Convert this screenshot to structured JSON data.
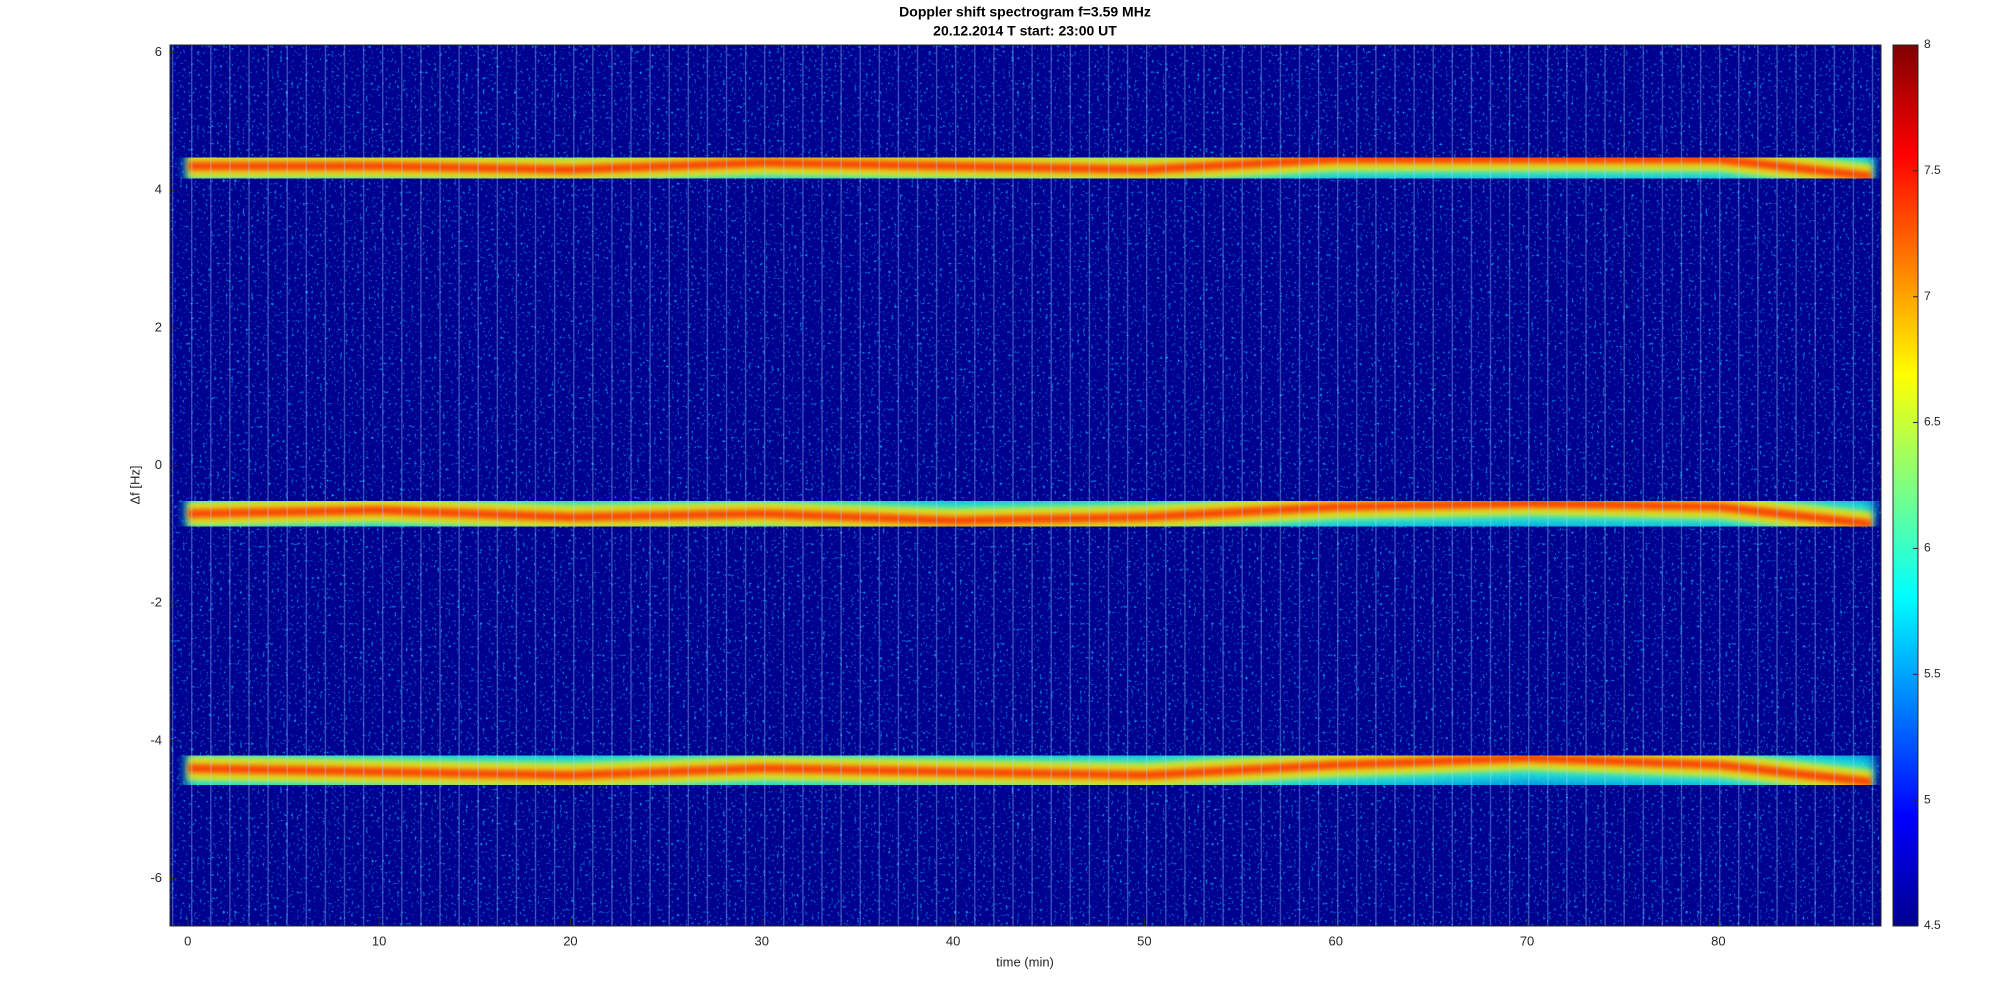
{
  "chart_data": {
    "type": "spectrogram",
    "title": "Doppler shift spectrogram f=3.59 MHz",
    "subtitle": "20.12.2014   T start: 23:00 UT",
    "x_label": "time (min)",
    "y_label": "Δf [Hz]",
    "x": [
      0,
      10,
      20,
      30,
      40,
      50,
      60,
      70,
      80,
      88
    ],
    "series": [
      {
        "values": [
          4.35,
          4.35,
          4.3,
          4.4,
          4.35,
          4.3,
          4.45,
          4.45,
          4.45,
          4.2
        ]
      },
      {
        "values": [
          -0.7,
          -0.65,
          -0.75,
          -0.7,
          -0.8,
          -0.75,
          -0.6,
          -0.55,
          -0.6,
          -0.85
        ]
      },
      {
        "values": [
          -4.4,
          -4.45,
          -4.5,
          -4.4,
          -4.45,
          -4.5,
          -4.35,
          -4.25,
          -4.35,
          -4.6
        ]
      }
    ],
    "xlim": [
      -0.93,
      88.5
    ],
    "ylim": [
      -6.69,
      6.11
    ],
    "xticks": [
      0,
      10,
      20,
      30,
      40,
      50,
      60,
      70,
      80
    ],
    "yticks": [
      -6,
      -4,
      -2,
      0,
      2,
      4,
      6
    ],
    "colormap": "jet",
    "clim": [
      4.5,
      8
    ],
    "cticks": [
      4.5,
      5,
      5.5,
      6,
      6.5,
      7,
      7.5,
      8
    ],
    "grid": false
  }
}
